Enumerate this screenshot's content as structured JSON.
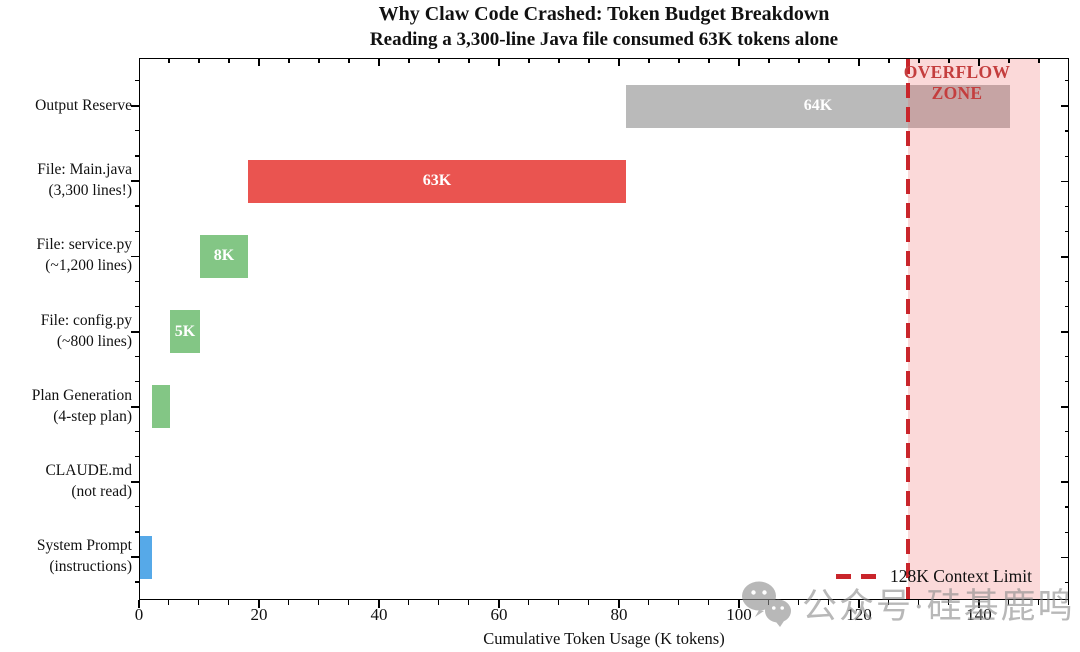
{
  "chart_data": {
    "type": "bar",
    "variant": "horizontal-waterfall",
    "title": "Why Claw Code Crashed: Token Budget Breakdown",
    "subtitle": "Reading a 3,300-line Java file consumed 63K tokens alone",
    "xlabel": "Cumulative Token Usage (K tokens)",
    "xlim": [
      0,
      155
    ],
    "xticks": [
      0,
      20,
      40,
      60,
      80,
      100,
      120,
      140
    ],
    "x_minor_step": 5,
    "grid": false,
    "categories": [
      {
        "label": [
          "Output Reserve"
        ],
        "start": 81,
        "value": 64,
        "bar_label": "64K",
        "color": "#bababa"
      },
      {
        "label": [
          "File: Main.java",
          "(3,300 lines!)"
        ],
        "start": 18,
        "value": 63,
        "bar_label": "63K",
        "color": "#ea5450"
      },
      {
        "label": [
          "File: service.py",
          "(~1,200 lines)"
        ],
        "start": 10,
        "value": 8,
        "bar_label": "8K",
        "color": "#83c685"
      },
      {
        "label": [
          "File: config.py",
          "(~800 lines)"
        ],
        "start": 5,
        "value": 5,
        "bar_label": "5K",
        "color": "#83c685"
      },
      {
        "label": [
          "Plan Generation",
          "(4-step plan)"
        ],
        "start": 2,
        "value": 3,
        "bar_label": "",
        "color": "#83c685"
      },
      {
        "label": [
          "CLAUDE.md",
          "(not read)"
        ],
        "start": 2,
        "value": 0,
        "bar_label": "",
        "color": "#83c685"
      },
      {
        "label": [
          "System Prompt",
          "(instructions)"
        ],
        "start": 0,
        "value": 2,
        "bar_label": "",
        "color": "#56a9e8"
      }
    ],
    "bar_label_color": "#ffffff",
    "context_limit": {
      "x": 128,
      "color": "#c9252b"
    },
    "overflow_zone": {
      "from": 128,
      "to": 150,
      "lines": [
        "OVERFLOW",
        "ZONE"
      ],
      "fill": "rgba(238,95,95,0.24)",
      "text_color": "#c43e3e"
    },
    "legend": {
      "position": "lower right",
      "frame": false,
      "entries": [
        {
          "label": "128K Context Limit",
          "style": "dashed-line",
          "color": "#c9252b"
        }
      ]
    }
  },
  "watermark": {
    "icon": "wechat-icon",
    "text": "公众号·硅基鹿鸣",
    "color": "#8d8d8d"
  }
}
